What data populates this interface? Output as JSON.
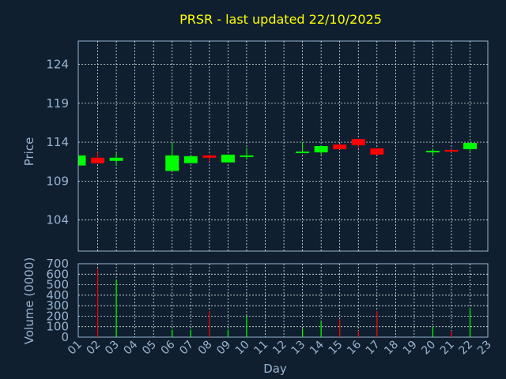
{
  "chart_data": [
    {
      "type": "candlestick",
      "title": "PRSR - last updated 22/10/2025",
      "xlabel": "",
      "ylabel": "Price",
      "ylim": [
        100,
        127
      ],
      "yticks": [
        104,
        109,
        114,
        119,
        124
      ],
      "grid": true,
      "colors": {
        "up": "#00ff00",
        "down": "#ff0000",
        "title": "#ffff00",
        "text": "#9ab4d0",
        "background": "#0f1f2f",
        "grid": "#ffffff"
      },
      "candles": [
        {
          "day": "01",
          "open": 111.0,
          "high": 112.3,
          "low": 111.0,
          "close": 112.3
        },
        {
          "day": "02",
          "open": 112.0,
          "high": 112.7,
          "low": 111.3,
          "close": 111.3
        },
        {
          "day": "03",
          "open": 111.6,
          "high": 112.6,
          "low": 111.0,
          "close": 112.0
        },
        {
          "day": "06",
          "open": 110.3,
          "high": 114.0,
          "low": 110.3,
          "close": 112.3
        },
        {
          "day": "07",
          "open": 111.3,
          "high": 112.2,
          "low": 111.3,
          "close": 112.2
        },
        {
          "day": "08",
          "open": 112.3,
          "high": 112.4,
          "low": 111.5,
          "close": 112.0
        },
        {
          "day": "09",
          "open": 111.4,
          "high": 112.4,
          "low": 111.4,
          "close": 112.4
        },
        {
          "day": "10",
          "open": 112.1,
          "high": 113.3,
          "low": 111.8,
          "close": 112.3
        },
        {
          "day": "13",
          "open": 112.7,
          "high": 114.0,
          "low": 112.6,
          "close": 112.8
        },
        {
          "day": "14",
          "open": 112.7,
          "high": 113.6,
          "low": 112.4,
          "close": 113.5
        },
        {
          "day": "15",
          "open": 113.7,
          "high": 113.8,
          "low": 113.1,
          "close": 113.1
        },
        {
          "day": "16",
          "open": 114.4,
          "high": 114.4,
          "low": 113.2,
          "close": 113.6
        },
        {
          "day": "17",
          "open": 113.2,
          "high": 113.2,
          "low": 112.4,
          "close": 112.4
        },
        {
          "day": "20",
          "open": 112.8,
          "high": 113.2,
          "low": 112.2,
          "close": 112.9
        },
        {
          "day": "21",
          "open": 113.0,
          "high": 113.1,
          "low": 112.7,
          "close": 112.8
        },
        {
          "day": "22",
          "open": 113.1,
          "high": 114.0,
          "low": 112.8,
          "close": 113.9
        }
      ]
    },
    {
      "type": "bar",
      "ylabel": "Volume (0000)",
      "xlabel": "Day",
      "ylim": [
        0,
        700
      ],
      "yticks": [
        0,
        100,
        200,
        300,
        400,
        500,
        600,
        700
      ],
      "categories": [
        "01",
        "02",
        "03",
        "04",
        "05",
        "06",
        "07",
        "08",
        "09",
        "10",
        "11",
        "12",
        "13",
        "14",
        "15",
        "16",
        "17",
        "18",
        "19",
        "20",
        "21",
        "22",
        "23"
      ],
      "values": [
        {
          "day": "02",
          "volume": 650,
          "dir": "down"
        },
        {
          "day": "03",
          "volume": 550,
          "dir": "up"
        },
        {
          "day": "06",
          "volume": 70,
          "dir": "up"
        },
        {
          "day": "07",
          "volume": 70,
          "dir": "up"
        },
        {
          "day": "08",
          "volume": 250,
          "dir": "down"
        },
        {
          "day": "09",
          "volume": 70,
          "dir": "up"
        },
        {
          "day": "10",
          "volume": 200,
          "dir": "up"
        },
        {
          "day": "13",
          "volume": 80,
          "dir": "up"
        },
        {
          "day": "14",
          "volume": 150,
          "dir": "up"
        },
        {
          "day": "15",
          "volume": 170,
          "dir": "down"
        },
        {
          "day": "16",
          "volume": 60,
          "dir": "down"
        },
        {
          "day": "17",
          "volume": 250,
          "dir": "down"
        },
        {
          "day": "20",
          "volume": 100,
          "dir": "up"
        },
        {
          "day": "21",
          "volume": 60,
          "dir": "down"
        },
        {
          "day": "22",
          "volume": 280,
          "dir": "up"
        }
      ]
    }
  ]
}
